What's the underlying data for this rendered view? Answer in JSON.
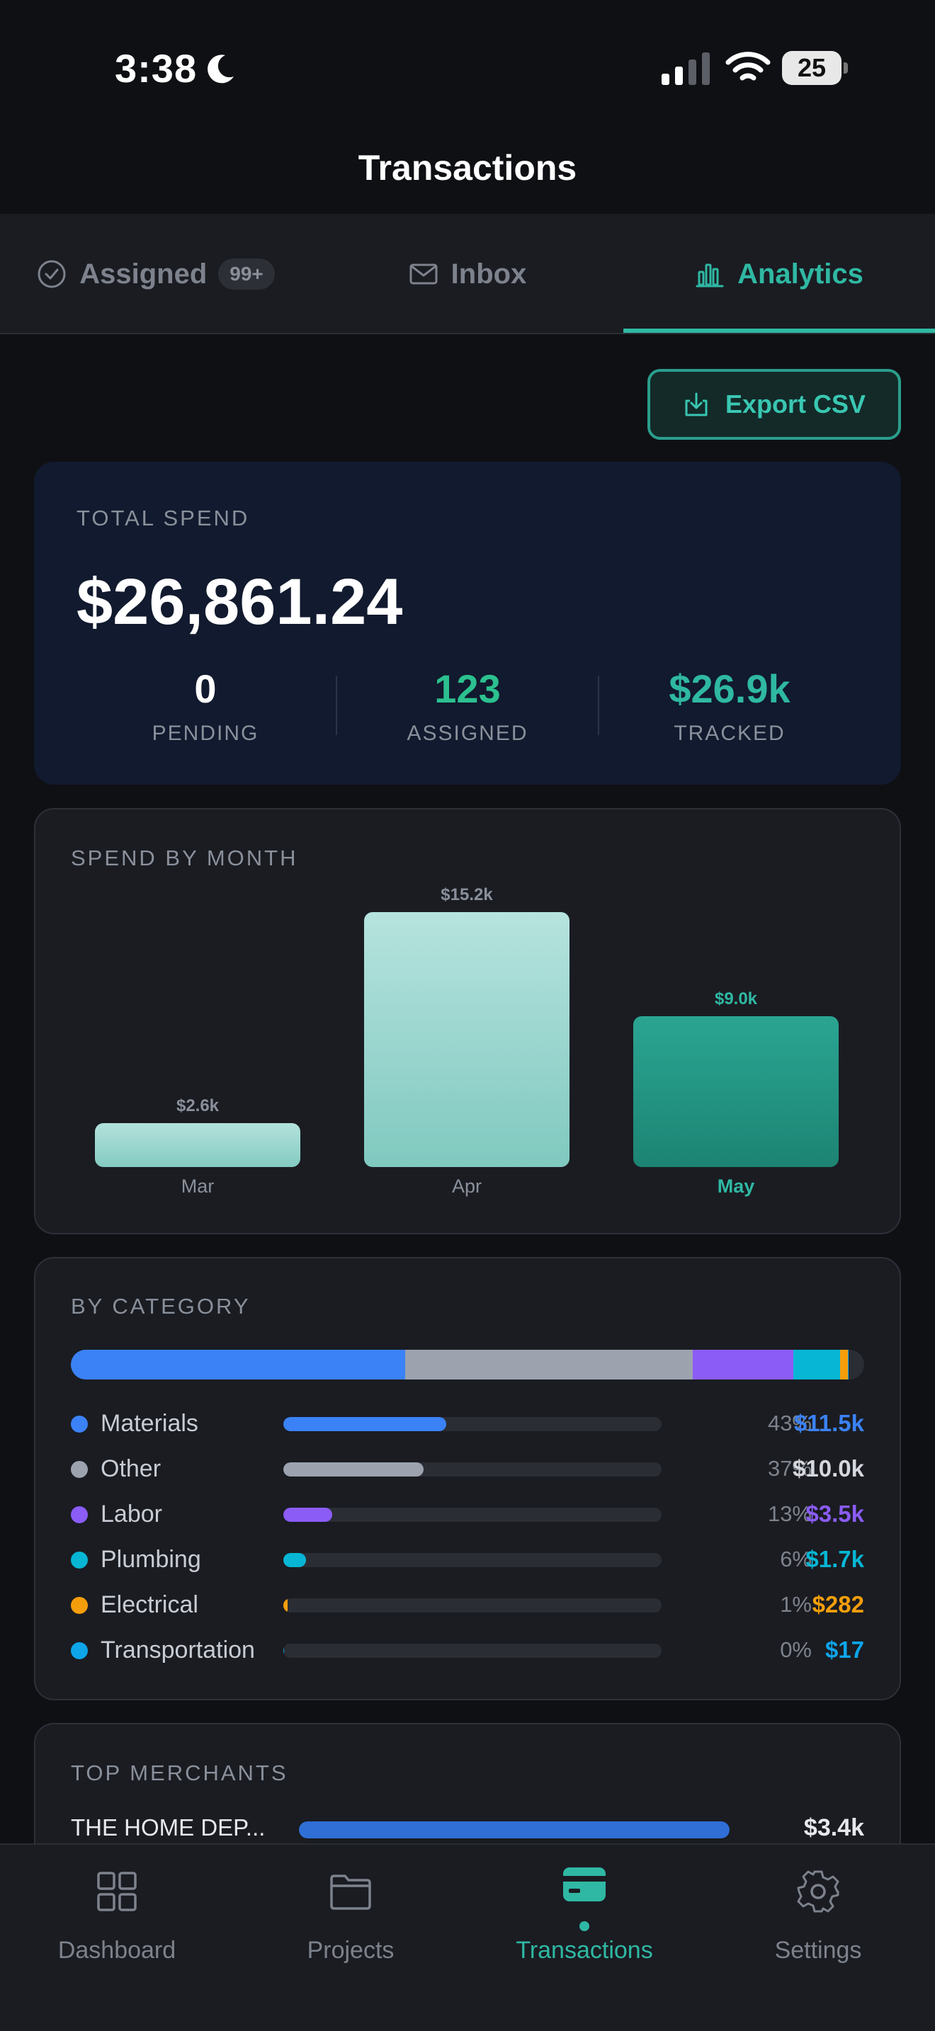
{
  "status_bar": {
    "time": "3:38",
    "battery": "25",
    "icons": [
      "moon-icon",
      "signal-icon",
      "wifi-icon",
      "battery-icon"
    ]
  },
  "header": {
    "title": "Transactions"
  },
  "tabs": [
    {
      "label": "Assigned",
      "badge": "99+",
      "icon": "check-circle-icon",
      "active": false
    },
    {
      "label": "Inbox",
      "icon": "envelope-icon",
      "active": false
    },
    {
      "label": "Analytics",
      "icon": "bar-chart-icon",
      "active": true
    }
  ],
  "colors": {
    "accent": "#2fb8a3",
    "materials": "#3b82f6",
    "other": "#9ca3af",
    "labor": "#8b5cf6",
    "plumbing": "#06b6d4",
    "electrical": "#f59e0b",
    "transportation": "#0ea5e9"
  },
  "export": {
    "label": "Export CSV",
    "icon": "download-icon"
  },
  "total": {
    "label": "TOTAL SPEND",
    "amount": "$26,861.24",
    "stats": [
      {
        "value": "0",
        "label": "PENDING"
      },
      {
        "value": "123",
        "label": "ASSIGNED"
      },
      {
        "value": "$26.9k",
        "label": "TRACKED"
      }
    ]
  },
  "spend_by_month": {
    "title": "SPEND BY MONTH"
  },
  "chart_data": {
    "type": "bar",
    "title": "SPEND BY MONTH",
    "categories": [
      "Mar",
      "Apr",
      "May"
    ],
    "values": [
      2.6,
      15.2,
      9.0
    ],
    "value_labels": [
      "$2.6k",
      "$15.2k",
      "$9.0k"
    ],
    "ylim": [
      0,
      15.2
    ],
    "highlighted": "May"
  },
  "by_category": {
    "title": "BY CATEGORY",
    "items": [
      {
        "name": "Materials",
        "pct": "43%",
        "amount": "$11.5k",
        "share": 0.43,
        "color": "#3b82f6"
      },
      {
        "name": "Other",
        "pct": "37%",
        "amount": "$10.0k",
        "share": 0.37,
        "color": "#9ca3af"
      },
      {
        "name": "Labor",
        "pct": "13%",
        "amount": "$3.5k",
        "share": 0.13,
        "color": "#8b5cf6"
      },
      {
        "name": "Plumbing",
        "pct": "6%",
        "amount": "$1.7k",
        "share": 0.06,
        "color": "#06b6d4"
      },
      {
        "name": "Electrical",
        "pct": "1%",
        "amount": "$282",
        "share": 0.01,
        "color": "#f59e0b"
      },
      {
        "name": "Transportation",
        "pct": "0%",
        "amount": "$17",
        "share": 0.0006,
        "color": "#0ea5e9"
      }
    ]
  },
  "top_merchants": {
    "title": "TOP MERCHANTS",
    "items": [
      {
        "name": "THE HOME DEP...",
        "amount": "$3.4k",
        "share": 1.0
      }
    ]
  },
  "bottom_nav": [
    {
      "label": "Dashboard",
      "icon": "grid-icon",
      "active": false
    },
    {
      "label": "Projects",
      "icon": "folder-icon",
      "active": false
    },
    {
      "label": "Transactions",
      "icon": "card-icon",
      "active": true
    },
    {
      "label": "Settings",
      "icon": "gear-icon",
      "active": false
    }
  ]
}
